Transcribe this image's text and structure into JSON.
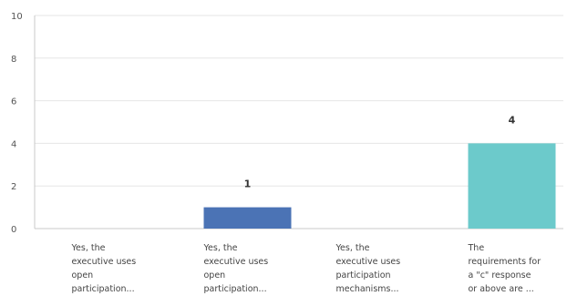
{
  "chart_data": {
    "type": "bar",
    "categories": [
      [
        "Yes, the",
        "executive uses",
        "open",
        "participation..."
      ],
      [
        "Yes, the",
        "executive uses",
        "open",
        "participation..."
      ],
      [
        "Yes, the",
        "executive uses",
        "participation",
        "mechanisms..."
      ],
      [
        "The",
        "requirements for",
        "a \"c\" response",
        "or above are ..."
      ]
    ],
    "values": [
      0,
      1,
      0,
      4
    ],
    "data_labels": [
      "",
      "1",
      "",
      "4"
    ],
    "bar_colors": [
      "#4b73b5",
      "#4b73b5",
      "#4b73b5",
      "#6ccacb"
    ],
    "ylim": [
      0,
      10
    ],
    "yticks": [
      "0",
      "2",
      "4",
      "6",
      "8",
      "10"
    ],
    "ytick_values": [
      0,
      2,
      4,
      6,
      8,
      10
    ],
    "grid": true,
    "legend": "none"
  }
}
